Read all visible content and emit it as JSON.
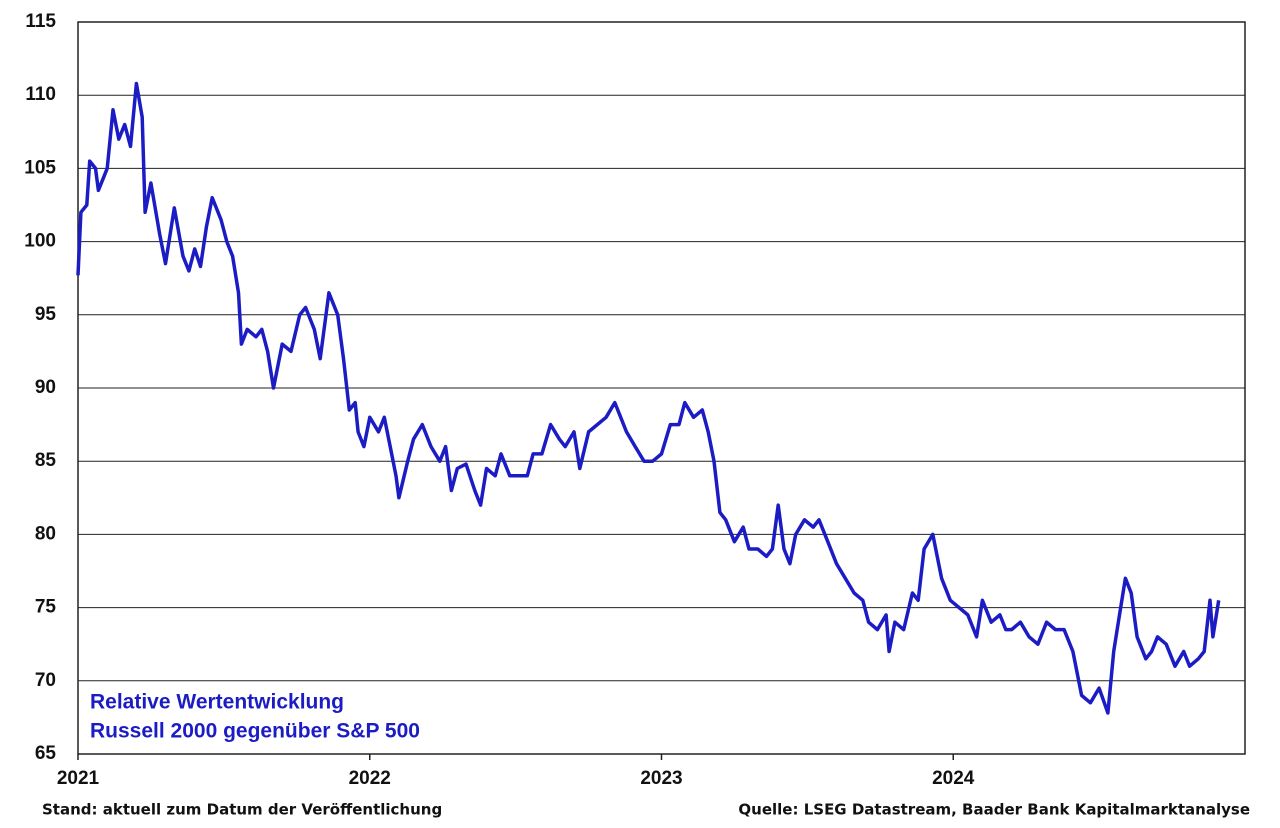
{
  "chart_data": {
    "type": "line",
    "annotation": [
      "Relative Wertentwicklung",
      "Russell 2000 gegenüber S&P 500"
    ],
    "footer_left": "Stand: aktuell zum Datum der Veröffentlichung",
    "footer_right": "Quelle: LSEG Datastream, Baader Bank Kapitalmarktanalyse",
    "xlim": [
      2021,
      2025
    ],
    "xticks": [
      2021,
      2022,
      2023,
      2024
    ],
    "ylim": [
      65,
      115
    ],
    "yticks": [
      65,
      70,
      75,
      80,
      85,
      90,
      95,
      100,
      105,
      110,
      115
    ],
    "grid": true,
    "x": [
      2021.0,
      2021.01,
      2021.03,
      2021.04,
      2021.06,
      2021.07,
      2021.09,
      2021.1,
      2021.12,
      2021.14,
      2021.16,
      2021.18,
      2021.2,
      2021.22,
      2021.23,
      2021.25,
      2021.28,
      2021.3,
      2021.33,
      2021.36,
      2021.38,
      2021.4,
      2021.42,
      2021.44,
      2021.46,
      2021.49,
      2021.51,
      2021.53,
      2021.55,
      2021.56,
      2021.58,
      2021.61,
      2021.63,
      2021.65,
      2021.67,
      2021.7,
      2021.73,
      2021.76,
      2021.78,
      2021.81,
      2021.83,
      2021.86,
      2021.89,
      2021.91,
      2021.93,
      2021.95,
      2021.96,
      2021.98,
      2022.0,
      2022.03,
      2022.05,
      2022.07,
      2022.09,
      2022.1,
      2022.13,
      2022.15,
      2022.18,
      2022.21,
      2022.24,
      2022.26,
      2022.28,
      2022.3,
      2022.33,
      2022.36,
      2022.38,
      2022.4,
      2022.43,
      2022.45,
      2022.48,
      2022.51,
      2022.54,
      2022.56,
      2022.59,
      2022.62,
      2022.65,
      2022.67,
      2022.7,
      2022.72,
      2022.75,
      2022.78,
      2022.81,
      2022.84,
      2022.86,
      2022.88,
      2022.91,
      2022.94,
      2022.97,
      2023.0,
      2023.03,
      2023.06,
      2023.08,
      2023.11,
      2023.14,
      2023.16,
      2023.18,
      2023.2,
      2023.22,
      2023.25,
      2023.28,
      2023.3,
      2023.33,
      2023.36,
      2023.38,
      2023.4,
      2023.42,
      2023.44,
      2023.46,
      2023.49,
      2023.52,
      2023.54,
      2023.57,
      2023.6,
      2023.63,
      2023.66,
      2023.69,
      2023.71,
      2023.74,
      2023.77,
      2023.78,
      2023.8,
      2023.83,
      2023.86,
      2023.88,
      2023.9,
      2023.93,
      2023.96,
      2023.99,
      2024.02,
      2024.05,
      2024.08,
      2024.1,
      2024.13,
      2024.16,
      2024.18,
      2024.2,
      2024.23,
      2024.26,
      2024.29,
      2024.32,
      2024.35,
      2024.38,
      2024.41,
      2024.44,
      2024.47,
      2024.5,
      2024.53,
      2024.55,
      2024.57,
      2024.59,
      2024.61,
      2024.63,
      2024.66,
      2024.68,
      2024.7,
      2024.73,
      2024.76,
      2024.79,
      2024.81,
      2024.84,
      2024.86,
      2024.88,
      2024.89,
      2024.91
    ],
    "series": [
      {
        "color": "#1c1cc4",
        "values": [
          97.7,
          102,
          102.5,
          105.5,
          105,
          103.5,
          104.5,
          105,
          109,
          107,
          108,
          106.5,
          110.8,
          108.5,
          102,
          104,
          100.5,
          98.5,
          102.3,
          99,
          98,
          99.5,
          98.3,
          101,
          103,
          101.5,
          100,
          99,
          96.5,
          93,
          94,
          93.5,
          94,
          92.5,
          90,
          93,
          92.5,
          95,
          95.5,
          94,
          92,
          96.5,
          95,
          92,
          88.5,
          89,
          87,
          86,
          88,
          87,
          88,
          86,
          84,
          82.5,
          85,
          86.5,
          87.5,
          86,
          85,
          86,
          83,
          84.5,
          84.8,
          83,
          82,
          84.5,
          84,
          85.5,
          84,
          84,
          84,
          85.5,
          85.5,
          87.5,
          86.5,
          86,
          87,
          84.5,
          87,
          87.5,
          88,
          89,
          88,
          87,
          86,
          85,
          85,
          85.5,
          87.5,
          87.5,
          89,
          88,
          88.5,
          87,
          85,
          81.5,
          81,
          79.5,
          80.5,
          79,
          79,
          78.5,
          79,
          82,
          79,
          78,
          80,
          81,
          80.5,
          81,
          79.5,
          78,
          77,
          76,
          75.5,
          74,
          73.5,
          74.5,
          72,
          74,
          73.5,
          76,
          75.5,
          79,
          80,
          77,
          75.5,
          75,
          74.5,
          73,
          75.5,
          74,
          74.5,
          73.5,
          73.5,
          74,
          73,
          72.5,
          74,
          73.5,
          73.5,
          72,
          69,
          68.5,
          69.5,
          67.8,
          72,
          74.5,
          77,
          76,
          73,
          71.5,
          72,
          73,
          72.5,
          71,
          72,
          71,
          71.5,
          72,
          75.5,
          73,
          75.5
        ]
      }
    ]
  }
}
